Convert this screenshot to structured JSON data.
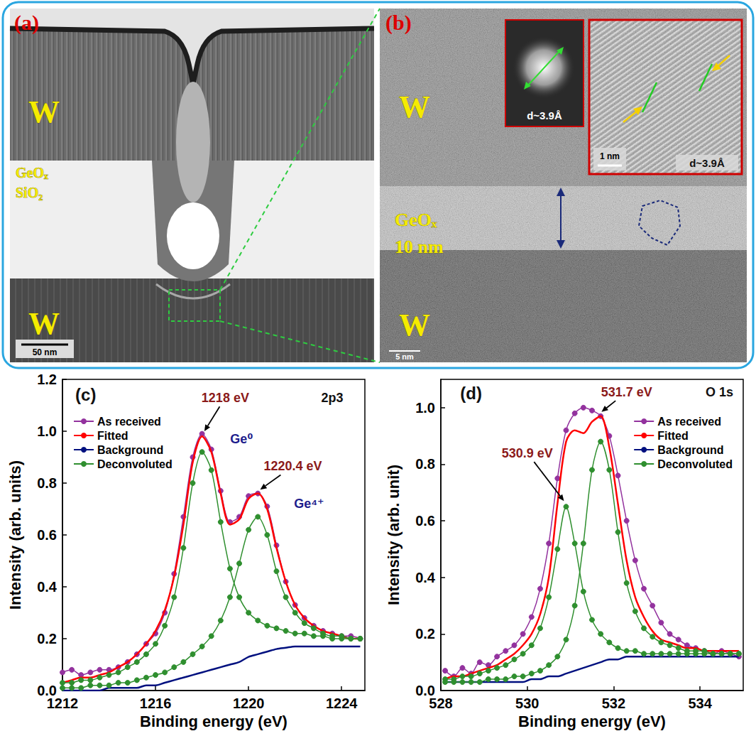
{
  "panels": [
    {
      "letter": "(a)",
      "labels": [
        "W",
        "GeOₓ",
        "SiO₂",
        "W"
      ],
      "scale_bar": "50 nm"
    },
    {
      "letter": "(b)",
      "labels": [
        "W",
        "GeOₓ",
        "10 nm",
        "W"
      ],
      "scale_bar": "5 nm",
      "insets": [
        {
          "text": "d~3.9Å"
        },
        {
          "text": "d~3.9Å",
          "scale_bar": "1 nm"
        }
      ]
    }
  ],
  "chart_data": [
    {
      "type": "line",
      "x_label": "Binding energy (eV)",
      "y_label": "Intensity (arb. units)",
      "xlim": [
        1212,
        1225
      ],
      "xticks": [
        1212,
        1216,
        1220,
        1224
      ],
      "ylim": [
        0,
        1.2
      ],
      "yticks": [
        {
          "value": 0,
          "label": "0.0"
        },
        0.2,
        0.4,
        0.6,
        0.8,
        {
          "value": 1,
          "label": "1.0"
        },
        1.2
      ],
      "grid": false,
      "legend": "upper left",
      "x": [
        1212,
        1212.4,
        1212.8,
        1213.2,
        1213.6,
        1214,
        1214.4,
        1214.8,
        1215.2,
        1215.6,
        1216,
        1216.4,
        1216.8,
        1217.2,
        1217.6,
        1218,
        1218.4,
        1218.8,
        1219.2,
        1219.6,
        1220,
        1220.4,
        1220.8,
        1221.2,
        1221.6,
        1222,
        1222.4,
        1222.8,
        1223.2,
        1223.6,
        1224,
        1224.4,
        1224.8
      ],
      "series": [
        {
          "name": "As received",
          "color": "#93329e",
          "marker": "circle",
          "values": [
            0.07,
            0.08,
            0.06,
            0.07,
            0.08,
            0.08,
            0.09,
            0.11,
            0.14,
            0.18,
            0.22,
            0.3,
            0.45,
            0.67,
            0.9,
            0.99,
            0.93,
            0.77,
            0.65,
            0.67,
            0.75,
            0.76,
            0.71,
            0.56,
            0.42,
            0.33,
            0.28,
            0.25,
            0.23,
            0.22,
            0.21,
            0.21,
            0.2
          ]
        },
        {
          "name": "Fitted",
          "color": "#ff0000",
          "values": [
            0.03,
            0.04,
            0.05,
            0.05,
            0.06,
            0.07,
            0.09,
            0.11,
            0.14,
            0.18,
            0.23,
            0.31,
            0.44,
            0.64,
            0.88,
            0.98,
            0.92,
            0.76,
            0.64,
            0.66,
            0.74,
            0.76,
            0.7,
            0.55,
            0.42,
            0.33,
            0.28,
            0.25,
            0.23,
            0.22,
            0.21,
            0.2,
            0.2
          ]
        },
        {
          "name": "Background",
          "color": "#00107f",
          "values": [
            0,
            0,
            0,
            0,
            0,
            0.01,
            0.01,
            0.01,
            0.01,
            0.02,
            0.02,
            0.03,
            0.04,
            0.05,
            0.06,
            0.07,
            0.08,
            0.09,
            0.1,
            0.11,
            0.13,
            0.14,
            0.15,
            0.16,
            0.165,
            0.17,
            0.17,
            0.17,
            0.17,
            0.17,
            0.17,
            0.17,
            0.17
          ]
        },
        {
          "name": "Deconvoluted",
          "color": "#2f8f2f",
          "marker": "circle",
          "values": [
            0.03,
            0.03,
            0.04,
            0.04,
            0.05,
            0.06,
            0.07,
            0.09,
            0.11,
            0.14,
            0.18,
            0.25,
            0.36,
            0.55,
            0.8,
            0.92,
            0.85,
            0.65,
            0.47,
            0.36,
            0.3,
            0.27,
            0.25,
            0.24,
            0.23,
            0.22,
            0.22,
            0.21,
            0.21,
            0.2,
            0.2,
            0.2,
            0.2
          ]
        },
        {
          "name": "Deconvoluted",
          "color": "#2f8f2f",
          "marker": "circle",
          "values": [
            0.01,
            0.01,
            0.01,
            0.02,
            0.02,
            0.02,
            0.03,
            0.03,
            0.04,
            0.05,
            0.06,
            0.07,
            0.09,
            0.11,
            0.14,
            0.17,
            0.21,
            0.27,
            0.36,
            0.49,
            0.62,
            0.67,
            0.6,
            0.46,
            0.36,
            0.3,
            0.26,
            0.24,
            0.22,
            0.21,
            0.21,
            0.2,
            0.2
          ]
        }
      ],
      "annotations": [
        {
          "text": "(c)",
          "at": [
            1213.0,
            1.14
          ],
          "color": "#111111"
        },
        {
          "text": "2p3",
          "at": [
            1223.6,
            1.13
          ],
          "color": "#111111"
        },
        {
          "text": "1218 eV",
          "at": [
            1219.0,
            1.13
          ],
          "arrow_to": [
            1218.1,
            1.0
          ],
          "color": "#8b1a1a"
        },
        {
          "text": "Ge⁰",
          "at": [
            1219.7,
            0.97
          ],
          "color": "#1c1c8c"
        },
        {
          "text": "1220.4 eV",
          "at": [
            1221.9,
            0.865
          ],
          "arrow_to": [
            1220.5,
            0.775
          ],
          "color": "#8b1a1a"
        },
        {
          "text": "Ge⁴⁺",
          "at": [
            1222.6,
            0.72
          ],
          "color": "#1c1c8c"
        }
      ]
    },
    {
      "type": "line",
      "x_label": "Binding energy (eV)",
      "y_label": "Intensity (arb. unit)",
      "xlim": [
        528,
        535
      ],
      "xticks": [
        528,
        530,
        532,
        534
      ],
      "ylim": [
        0,
        1.1
      ],
      "yticks": [
        {
          "value": 0,
          "label": "0.0"
        },
        0.2,
        0.4,
        0.6,
        0.8,
        {
          "value": 1,
          "label": "1.0"
        }
      ],
      "grid": false,
      "legend": "upper right",
      "x": [
        528.1,
        528.3,
        528.5,
        528.7,
        528.9,
        529.1,
        529.3,
        529.5,
        529.7,
        529.9,
        530.1,
        530.3,
        530.5,
        530.7,
        530.9,
        531.1,
        531.3,
        531.5,
        531.7,
        531.9,
        532.1,
        532.3,
        532.5,
        532.7,
        532.9,
        533.1,
        533.3,
        533.5,
        533.7,
        533.9,
        534.1,
        534.3,
        534.5,
        534.7,
        534.9
      ],
      "series": [
        {
          "name": "As received",
          "color": "#93329e",
          "marker": "circle",
          "values": [
            0.07,
            0.05,
            0.08,
            0.06,
            0.1,
            0.09,
            0.12,
            0.14,
            0.16,
            0.2,
            0.26,
            0.36,
            0.52,
            0.75,
            0.92,
            0.98,
            1.0,
            0.99,
            0.97,
            0.9,
            0.76,
            0.6,
            0.46,
            0.36,
            0.3,
            0.24,
            0.2,
            0.18,
            0.16,
            0.15,
            0.14,
            0.13,
            0.14,
            0.13,
            0.12
          ]
        },
        {
          "name": "Fitted",
          "color": "#ff0000",
          "values": [
            0.04,
            0.05,
            0.05,
            0.06,
            0.07,
            0.08,
            0.09,
            0.11,
            0.13,
            0.16,
            0.2,
            0.27,
            0.4,
            0.66,
            0.88,
            0.92,
            0.91,
            0.95,
            0.97,
            0.86,
            0.66,
            0.46,
            0.33,
            0.26,
            0.21,
            0.18,
            0.17,
            0.16,
            0.15,
            0.15,
            0.14,
            0.14,
            0.14,
            0.14,
            0.14
          ]
        },
        {
          "name": "Background",
          "color": "#00107f",
          "values": [
            0.03,
            0.03,
            0.03,
            0.03,
            0.03,
            0.03,
            0.03,
            0.03,
            0.03,
            0.03,
            0.04,
            0.04,
            0.05,
            0.05,
            0.06,
            0.07,
            0.08,
            0.09,
            0.1,
            0.11,
            0.11,
            0.12,
            0.12,
            0.12,
            0.12,
            0.12,
            0.12,
            0.12,
            0.12,
            0.12,
            0.12,
            0.12,
            0.12,
            0.12,
            0.12
          ]
        },
        {
          "name": "Deconvoluted",
          "color": "#2f8f2f",
          "marker": "circle",
          "values": [
            0.04,
            0.04,
            0.05,
            0.05,
            0.06,
            0.07,
            0.08,
            0.09,
            0.11,
            0.13,
            0.16,
            0.22,
            0.33,
            0.5,
            0.65,
            0.52,
            0.35,
            0.25,
            0.2,
            0.17,
            0.15,
            0.14,
            0.14,
            0.13,
            0.13,
            0.13,
            0.13,
            0.13,
            0.13,
            0.13,
            0.13,
            0.13,
            0.13,
            0.13,
            0.13
          ]
        },
        {
          "name": "Deconvoluted",
          "color": "#2f8f2f",
          "marker": "circle",
          "values": [
            0.03,
            0.03,
            0.03,
            0.03,
            0.03,
            0.04,
            0.04,
            0.04,
            0.05,
            0.05,
            0.06,
            0.07,
            0.09,
            0.12,
            0.18,
            0.3,
            0.52,
            0.78,
            0.88,
            0.78,
            0.56,
            0.38,
            0.28,
            0.22,
            0.19,
            0.17,
            0.16,
            0.15,
            0.14,
            0.14,
            0.14,
            0.13,
            0.13,
            0.13,
            0.13
          ]
        }
      ],
      "annotations": [
        {
          "text": "(d)",
          "at": [
            528.7,
            1.05
          ],
          "color": "#111111"
        },
        {
          "text": "O 1s",
          "at": [
            534.45,
            1.055
          ],
          "color": "#111111"
        },
        {
          "text": "531.7 eV",
          "at": [
            532.3,
            1.055
          ],
          "arrow_to": [
            531.72,
            0.985
          ],
          "color": "#8b1a1a"
        },
        {
          "text": "530.9 eV",
          "at": [
            530.0,
            0.84
          ],
          "arrow_to": [
            530.85,
            0.67
          ],
          "color": "#8b1a1a"
        }
      ]
    }
  ]
}
